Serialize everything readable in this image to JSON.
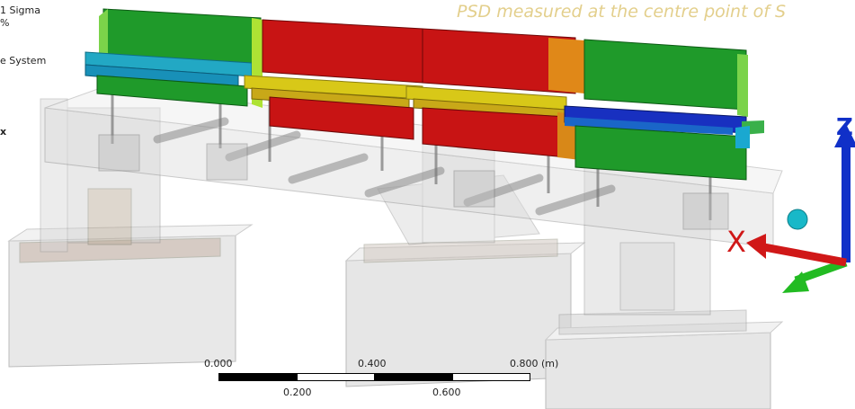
{
  "legend": {
    "line1": "1 Sigma",
    "line2": "%",
    "line3": "e System",
    "line4": "x"
  },
  "caption": "PSD measured at the centre point of S",
  "scale": {
    "top_labels": [
      "0.000",
      "0.400",
      "0.800 (m)"
    ],
    "bottom_labels": [
      "0.200",
      "0.600"
    ]
  },
  "triad": {
    "x_label": "X",
    "z_label": "Z"
  },
  "colors": {
    "red": "#c81414",
    "yellow": "#d8c818",
    "green": "#1f9a2a",
    "cyan": "#18a8c8",
    "blue": "#1830c0",
    "axis_red": "#d01818",
    "axis_green": "#22bb22",
    "axis_blue": "#1030c8",
    "caption": "#e3cf8c"
  }
}
